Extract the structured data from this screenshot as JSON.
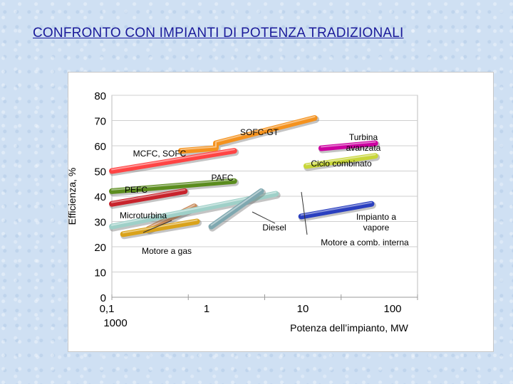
{
  "title": "CONFRONTO CON IMPIANTI DI POTENZA TRADIZIONALI",
  "chart_data": {
    "type": "line",
    "title": "CONFRONTO CON IMPIANTI DI POTENZA TRADIZIONALI",
    "xlabel": "Potenza dell’impianto, MW",
    "ylabel": "Efficienza, %",
    "xscale": "log",
    "xlim": [
      0.1,
      1000
    ],
    "ylim": [
      0,
      80
    ],
    "grid": true,
    "y_ticks": [
      0,
      10,
      20,
      30,
      40,
      50,
      60,
      70,
      80
    ],
    "x_ticks": [
      {
        "value": 0.1,
        "label": "0,1"
      },
      {
        "value": 1,
        "label": "1"
      },
      {
        "value": 10,
        "label": "10"
      },
      {
        "value": 100,
        "label": "100"
      }
    ],
    "x_extra_label": "1000",
    "series": [
      {
        "name": "SOFC-GT",
        "color": "#f4921e",
        "points": [
          [
            0.8,
            58
          ],
          [
            2.3,
            59
          ],
          [
            2.3,
            61
          ],
          [
            45,
            71
          ]
        ]
      },
      {
        "name": "MCFC, SOFC",
        "color": "#ff4444",
        "points": [
          [
            0.1,
            50
          ],
          [
            4,
            58
          ]
        ]
      },
      {
        "name": "PAFC",
        "color": "#5b8c1e",
        "points": [
          [
            0.1,
            42
          ],
          [
            4,
            46
          ]
        ]
      },
      {
        "name": "PEFC",
        "color": "#c8232c",
        "points": [
          [
            0.1,
            37
          ],
          [
            0.9,
            42
          ]
        ]
      },
      {
        "name": "Microturbina",
        "color": "#c98a5a",
        "points": [
          [
            0.3,
            27
          ],
          [
            1.2,
            36
          ]
        ]
      },
      {
        "name": "Motore a gas",
        "color": "#d9a21a",
        "points": [
          [
            0.14,
            25
          ],
          [
            1.3,
            30
          ]
        ]
      },
      {
        "name": "Diesel",
        "color": "#9fd0c8",
        "points": [
          [
            0.1,
            28
          ],
          [
            14,
            41
          ]
        ]
      },
      {
        "name": "Motore a comb. interna",
        "color": "#7fa8b0",
        "points": [
          [
            2,
            28
          ],
          [
            9,
            42
          ]
        ]
      },
      {
        "name": "Impianto a vapore",
        "color": "#2a3fbf",
        "points": [
          [
            30,
            32
          ],
          [
            250,
            37
          ]
        ]
      },
      {
        "name": "Ciclo combinato",
        "color": "#c8d63a",
        "points": [
          [
            35,
            52
          ],
          [
            280,
            56
          ]
        ]
      },
      {
        "name": "Turbina avanzata",
        "color": "#cc00a0",
        "points": [
          [
            55,
            59
          ],
          [
            280,
            61
          ]
        ]
      }
    ],
    "annotations": [
      {
        "text": "SOFC-GT",
        "lines": [
          "SOFC-GT"
        ]
      },
      {
        "text": "MCFC, SOFC",
        "lines": [
          "MCFC, SOFC"
        ]
      },
      {
        "text": "PAFC",
        "lines": [
          "PAFC"
        ]
      },
      {
        "text": "PEFC",
        "lines": [
          "PEFC"
        ]
      },
      {
        "text": "Microturbina",
        "lines": [
          "Microturbina"
        ]
      },
      {
        "text": "Motore a gas",
        "lines": [
          "Motore a gas"
        ]
      },
      {
        "text": "Diesel",
        "lines": [
          "Diesel"
        ]
      },
      {
        "text": "Turbina avanzata",
        "lines": [
          "Turbina",
          "avanzata"
        ]
      },
      {
        "text": "Ciclo combinato",
        "lines": [
          "Ciclo combinato"
        ]
      },
      {
        "text": "Impianto a vapore",
        "lines": [
          "Impianto a",
          "vapore"
        ]
      },
      {
        "text": "Motore a comb. interna",
        "lines": [
          "Motore a comb. interna"
        ]
      }
    ]
  }
}
